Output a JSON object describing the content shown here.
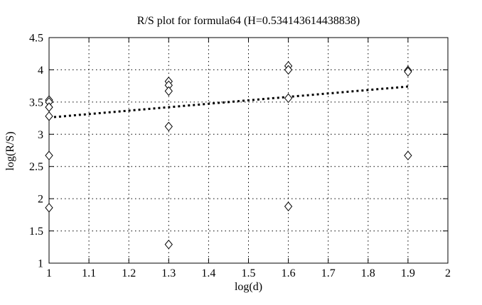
{
  "colors": {
    "background": "#ffffff",
    "foreground": "#000000",
    "marker_fill": "#ffffff"
  },
  "chart_data": {
    "type": "scatter",
    "title": "R/S plot for formula64 (H=0.534143614438838)",
    "xlabel": "log(d)",
    "ylabel": "log(R/S)",
    "xlim": [
      1,
      2
    ],
    "ylim": [
      1,
      4.5
    ],
    "x_ticks": [
      1,
      1.1,
      1.2,
      1.3,
      1.4,
      1.5,
      1.6,
      1.7,
      1.8,
      1.9,
      2
    ],
    "x_tick_labels": [
      "1",
      "1.1",
      "1.2",
      "1.3",
      "1.4",
      "1.5",
      "1.6",
      "1.7",
      "1.8",
      "1.9",
      "2"
    ],
    "y_ticks": [
      1,
      1.5,
      2,
      2.5,
      3,
      3.5,
      4,
      4.5
    ],
    "y_tick_labels": [
      "1",
      "1.5",
      "2",
      "2.5",
      "3",
      "3.5",
      "4",
      "4.5"
    ],
    "grid": true,
    "legend": "none",
    "marker": "open-diamond",
    "series": [
      {
        "name": "R/S estimates",
        "points": [
          [
            1.0,
            3.53
          ],
          [
            1.0,
            3.5
          ],
          [
            1.0,
            3.42
          ],
          [
            1.0,
            3.28
          ],
          [
            1.0,
            2.67
          ],
          [
            1.0,
            1.86
          ],
          [
            1.3,
            3.82
          ],
          [
            1.3,
            3.76
          ],
          [
            1.3,
            3.67
          ],
          [
            1.3,
            3.12
          ],
          [
            1.3,
            1.29
          ],
          [
            1.6,
            4.06
          ],
          [
            1.6,
            4.0
          ],
          [
            1.6,
            3.56
          ],
          [
            1.6,
            1.88
          ],
          [
            1.9,
            3.99
          ],
          [
            1.9,
            3.97
          ],
          [
            1.9,
            2.67
          ]
        ]
      }
    ],
    "fit_line": {
      "style": "thick-dotted",
      "H": "0.534143614438838",
      "from": [
        1.0,
        3.26
      ],
      "to": [
        1.9,
        3.74
      ]
    }
  }
}
